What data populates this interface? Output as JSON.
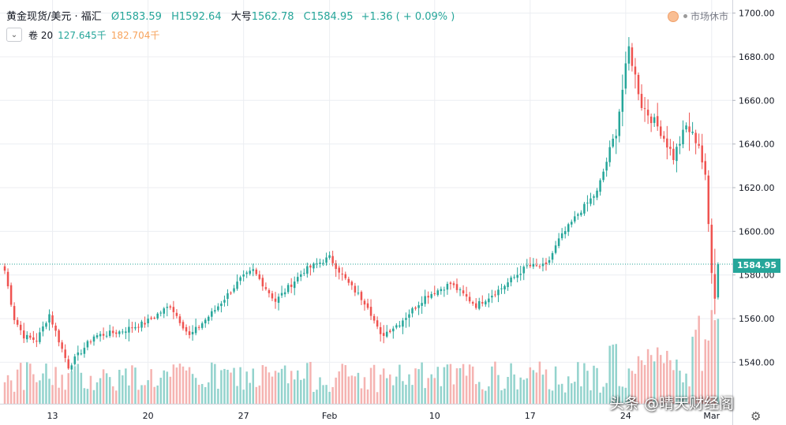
{
  "header": {
    "symbol": "黄金现货/美元 · 福汇",
    "open": "Ø1583.59",
    "high": "H1592.64",
    "low_label": "大号",
    "low_value": "1562.78",
    "close": "C1584.95",
    "change": "+1.36 ( + 0.09% )"
  },
  "volume_legend": {
    "toggle_icon": "chevron-down-icon",
    "label": "卷 20",
    "value1": "127.645千",
    "value2": "182.704千"
  },
  "market_status": "市场休市",
  "last_price_label": "1584.95",
  "watermark": "头条 @晴天财经阁",
  "chart_data": {
    "type": "candlestick",
    "title": "黄金现货/美元 · 福汇",
    "y_ticks": [
      1540,
      1560,
      1580,
      1600,
      1620,
      1640,
      1660,
      1680,
      1700
    ],
    "y_tick_labels": [
      "1540.00",
      "1560.00",
      "1580.00",
      "1600.00",
      "1620.00",
      "1640.00",
      "1660.00",
      "1680.00",
      "1700.00"
    ],
    "ylim": [
      1521,
      1706
    ],
    "x_tick_labels": [
      "13",
      "20",
      "27",
      "Feb",
      "10",
      "17",
      "24",
      "Mar"
    ],
    "x_tick_bar_index": [
      15,
      45,
      75,
      102,
      135,
      165,
      195,
      222
    ],
    "bar_count": 228,
    "last_price": 1584.95,
    "colors": {
      "up": "#26a69a",
      "down": "#ef5350",
      "vol_up": "#80cbc4",
      "vol_down": "#f3a6a3"
    },
    "anchors": [
      [
        0,
        1582
      ],
      [
        3,
        1560
      ],
      [
        6,
        1552
      ],
      [
        10,
        1550
      ],
      [
        14,
        1562
      ],
      [
        20,
        1538
      ],
      [
        28,
        1552
      ],
      [
        36,
        1554
      ],
      [
        44,
        1558
      ],
      [
        52,
        1566
      ],
      [
        58,
        1552
      ],
      [
        66,
        1564
      ],
      [
        74,
        1578
      ],
      [
        78,
        1582
      ],
      [
        85,
        1568
      ],
      [
        94,
        1582
      ],
      [
        102,
        1588
      ],
      [
        108,
        1576
      ],
      [
        114,
        1566
      ],
      [
        118,
        1552
      ],
      [
        124,
        1558
      ],
      [
        132,
        1570
      ],
      [
        140,
        1576
      ],
      [
        148,
        1566
      ],
      [
        156,
        1574
      ],
      [
        164,
        1584
      ],
      [
        170,
        1584
      ],
      [
        174,
        1596
      ],
      [
        180,
        1608
      ],
      [
        186,
        1618
      ],
      [
        192,
        1646
      ],
      [
        196,
        1684
      ],
      [
        200,
        1658
      ],
      [
        206,
        1646
      ],
      [
        210,
        1634
      ],
      [
        214,
        1648
      ],
      [
        218,
        1640
      ],
      [
        220,
        1624
      ],
      [
        222,
        1582
      ],
      [
        223,
        1570
      ],
      [
        224,
        1586
      ]
    ],
    "grid": true,
    "legend_position": "top-left"
  }
}
